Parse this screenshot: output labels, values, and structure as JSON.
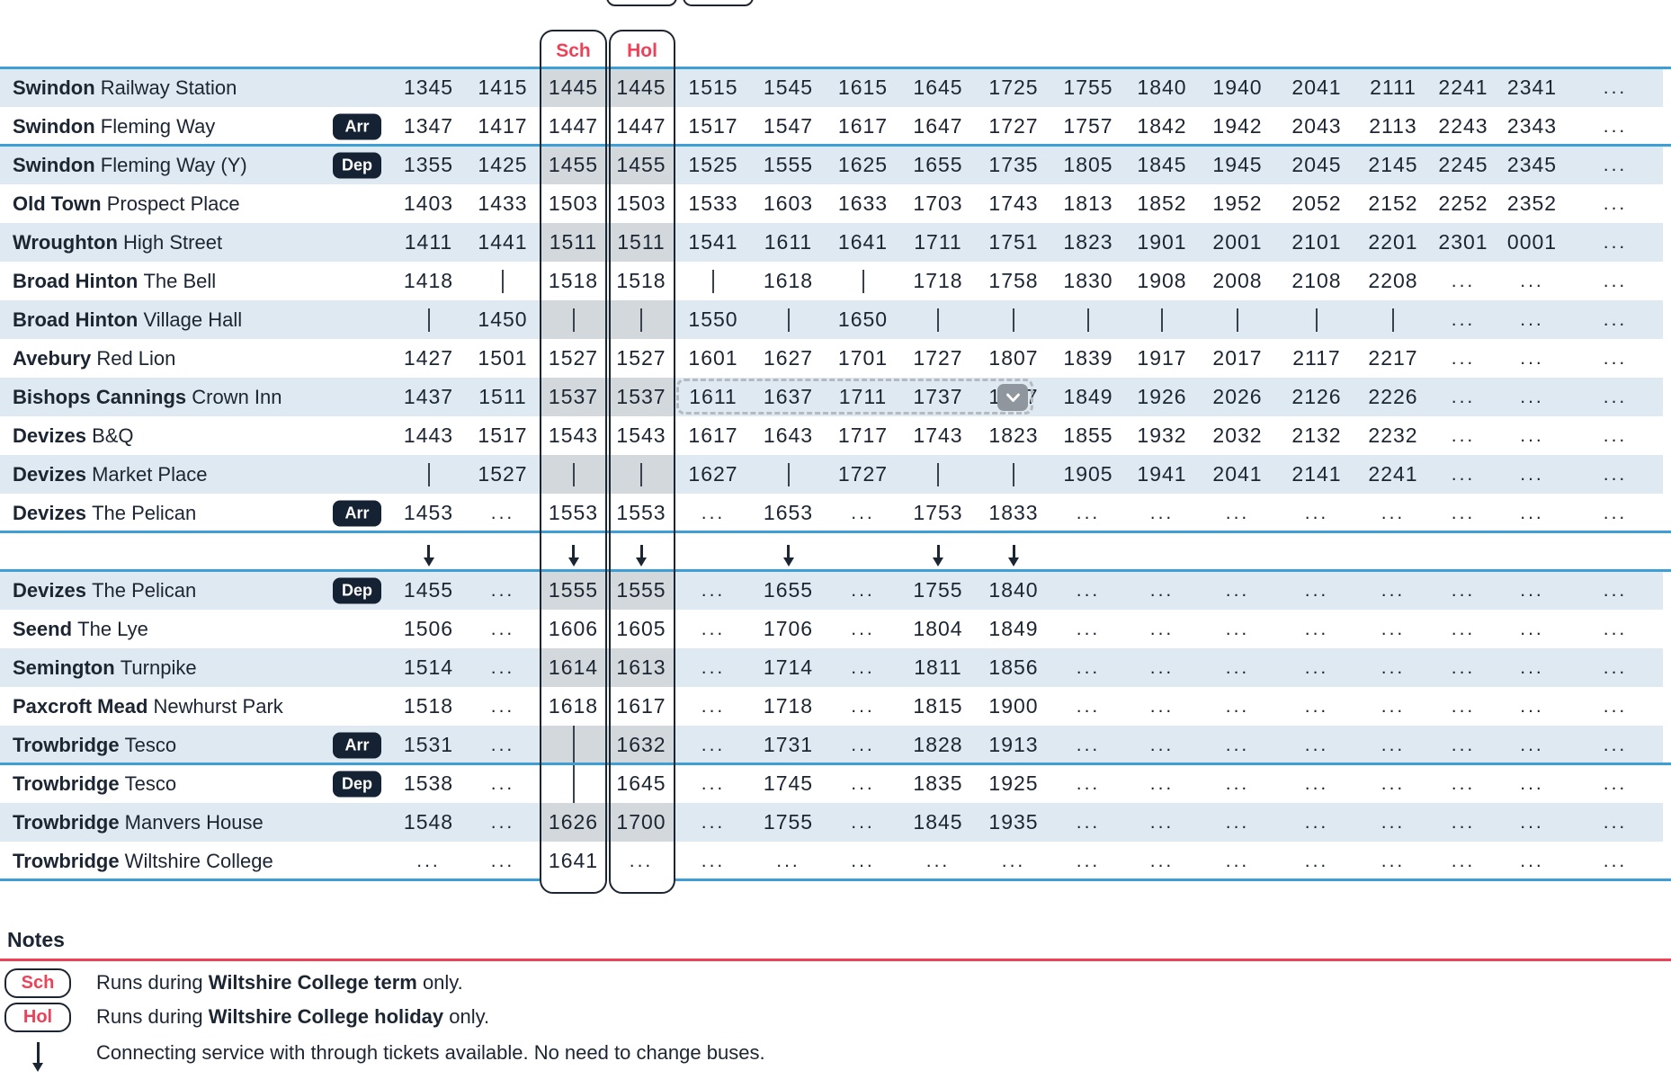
{
  "columns": {
    "sch_label": "Sch",
    "hol_label": "Hol",
    "num_time_columns": 17
  },
  "timetable": {
    "upper_rows": [
      {
        "place": "Swindon",
        "stop": "Railway Station",
        "badge": "",
        "cells": [
          "1345",
          "1415",
          "1445",
          "1445",
          "1515",
          "1545",
          "1615",
          "1645",
          "1725",
          "1755",
          "1840",
          "1940",
          "2041",
          "2111",
          "2241",
          "2341",
          "..."
        ]
      },
      {
        "place": "Swindon",
        "stop": "Fleming Way",
        "badge": "Arr",
        "cells": [
          "1347",
          "1417",
          "1447",
          "1447",
          "1517",
          "1547",
          "1617",
          "1647",
          "1727",
          "1757",
          "1842",
          "1942",
          "2043",
          "2113",
          "2243",
          "2343",
          "..."
        ]
      },
      {
        "place": "Swindon",
        "stop": "Fleming Way (Y)",
        "badge": "Dep",
        "cells": [
          "1355",
          "1425",
          "1455",
          "1455",
          "1525",
          "1555",
          "1625",
          "1655",
          "1735",
          "1805",
          "1845",
          "1945",
          "2045",
          "2145",
          "2245",
          "2345",
          "..."
        ]
      },
      {
        "place": "Old Town",
        "stop": "Prospect Place",
        "badge": "",
        "cells": [
          "1403",
          "1433",
          "1503",
          "1503",
          "1533",
          "1603",
          "1633",
          "1703",
          "1743",
          "1813",
          "1852",
          "1952",
          "2052",
          "2152",
          "2252",
          "2352",
          "..."
        ]
      },
      {
        "place": "Wroughton",
        "stop": "High Street",
        "badge": "",
        "cells": [
          "1411",
          "1441",
          "1511",
          "1511",
          "1541",
          "1611",
          "1641",
          "1711",
          "1751",
          "1823",
          "1901",
          "2001",
          "2101",
          "2201",
          "2301",
          "0001",
          "..."
        ]
      },
      {
        "place": "Broad Hinton",
        "stop": "The Bell",
        "badge": "",
        "cells": [
          "1418",
          "|",
          "1518",
          "1518",
          "|",
          "1618",
          "|",
          "1718",
          "1758",
          "1830",
          "1908",
          "2008",
          "2108",
          "2208",
          "...",
          "...",
          "..."
        ]
      },
      {
        "place": "Broad Hinton",
        "stop": "Village Hall",
        "badge": "",
        "cells": [
          "|",
          "1450",
          "|",
          "|",
          "1550",
          "|",
          "1650",
          "|",
          "|",
          "|",
          "|",
          "|",
          "|",
          "|",
          "...",
          "...",
          "..."
        ]
      },
      {
        "place": "Avebury",
        "stop": "Red Lion",
        "badge": "",
        "cells": [
          "1427",
          "1501",
          "1527",
          "1527",
          "1601",
          "1627",
          "1701",
          "1727",
          "1807",
          "1839",
          "1917",
          "2017",
          "2117",
          "2217",
          "...",
          "...",
          "..."
        ]
      },
      {
        "place": "Bishops Cannings",
        "stop": "Crown Inn",
        "badge": "",
        "cells": [
          "1437",
          "1511",
          "1537",
          "1537",
          "1611",
          "1637",
          "1711",
          "1737",
          "1817",
          "1849",
          "1926",
          "2026",
          "2126",
          "2226",
          "...",
          "...",
          "..."
        ]
      },
      {
        "place": "Devizes",
        "stop": "B&Q",
        "badge": "",
        "cells": [
          "1443",
          "1517",
          "1543",
          "1543",
          "1617",
          "1643",
          "1717",
          "1743",
          "1823",
          "1855",
          "1932",
          "2032",
          "2132",
          "2232",
          "...",
          "...",
          "..."
        ]
      },
      {
        "place": "Devizes",
        "stop": "Market Place",
        "badge": "",
        "cells": [
          "|",
          "1527",
          "|",
          "|",
          "1627",
          "|",
          "1727",
          "|",
          "|",
          "1905",
          "1941",
          "2041",
          "2141",
          "2241",
          "...",
          "...",
          "..."
        ]
      },
      {
        "place": "Devizes",
        "stop": "The Pelican",
        "badge": "Arr",
        "cells": [
          "1453",
          "...",
          "1553",
          "1553",
          "...",
          "1653",
          "...",
          "1753",
          "1833",
          "...",
          "...",
          "...",
          "...",
          "...",
          "...",
          "...",
          "..."
        ]
      }
    ],
    "connector_arrow_columns": [
      0,
      2,
      3,
      5,
      7,
      8
    ],
    "lower_rows": [
      {
        "place": "Devizes",
        "stop": "The Pelican",
        "badge": "Dep",
        "cells": [
          "1455",
          "...",
          "1555",
          "1555",
          "...",
          "1655",
          "...",
          "1755",
          "1840",
          "...",
          "...",
          "...",
          "...",
          "...",
          "...",
          "...",
          "..."
        ]
      },
      {
        "place": "Seend",
        "stop": "The Lye",
        "badge": "",
        "cells": [
          "1506",
          "...",
          "1606",
          "1605",
          "...",
          "1706",
          "...",
          "1804",
          "1849",
          "...",
          "...",
          "...",
          "...",
          "...",
          "...",
          "...",
          "..."
        ]
      },
      {
        "place": "Semington",
        "stop": "Turnpike",
        "badge": "",
        "cells": [
          "1514",
          "...",
          "1614",
          "1613",
          "...",
          "1714",
          "...",
          "1811",
          "1856",
          "...",
          "...",
          "...",
          "...",
          "...",
          "...",
          "...",
          "..."
        ]
      },
      {
        "place": "Paxcroft Mead",
        "stop": "Newhurst Park",
        "badge": "",
        "cells": [
          "1518",
          "...",
          "1618",
          "1617",
          "...",
          "1718",
          "...",
          "1815",
          "1900",
          "...",
          "...",
          "...",
          "...",
          "...",
          "...",
          "...",
          "..."
        ]
      },
      {
        "place": "Trowbridge",
        "stop": "Tesco",
        "badge": "Arr",
        "cells": [
          "1531",
          "...",
          "|",
          "1632",
          "...",
          "1731",
          "...",
          "1828",
          "1913",
          "...",
          "...",
          "...",
          "...",
          "...",
          "...",
          "...",
          "..."
        ]
      },
      {
        "place": "Trowbridge",
        "stop": "Tesco",
        "badge": "Dep",
        "cells": [
          "1538",
          "...",
          "|",
          "1645",
          "...",
          "1745",
          "...",
          "1835",
          "1925",
          "...",
          "...",
          "...",
          "...",
          "...",
          "...",
          "...",
          "..."
        ]
      },
      {
        "place": "Trowbridge",
        "stop": "Manvers House",
        "badge": "",
        "cells": [
          "1548",
          "...",
          "1626",
          "1700",
          "...",
          "1755",
          "...",
          "1845",
          "1935",
          "...",
          "...",
          "...",
          "...",
          "...",
          "...",
          "...",
          "..."
        ]
      },
      {
        "place": "Trowbridge",
        "stop": "Wiltshire College",
        "badge": "",
        "cells": [
          "...",
          "...",
          "1641",
          "...",
          "...",
          "...",
          "...",
          "...",
          "...",
          "...",
          "...",
          "...",
          "...",
          "...",
          "...",
          "...",
          "..."
        ]
      }
    ],
    "selection_overlay": {
      "row_place": "Bishops Cannings",
      "covered_value": "1817",
      "button_icon": "chevron-down"
    }
  },
  "notes": {
    "heading": "Notes",
    "items": [
      {
        "badge": "Sch",
        "parts": [
          "Runs during ",
          "Wiltshire College term",
          " only."
        ],
        "bold_index": 1
      },
      {
        "badge": "Hol",
        "parts": [
          "Runs during ",
          "Wiltshire College holiday",
          " only."
        ],
        "bold_index": 1
      },
      {
        "icon": "connector-arrow",
        "parts": [
          "Connecting service with through tickets available. No need to change buses."
        ],
        "bold_index": -1
      }
    ]
  },
  "colors": {
    "accent_red": "#ee4158",
    "navy_text": "#1c2532",
    "row_stripe": "#dfe9f1",
    "stripe_shaded": "#d3d8dc",
    "section_line": "#3d9fd6",
    "badge_bg": "#152233",
    "dropdown_button_grey": "#8f969d"
  }
}
